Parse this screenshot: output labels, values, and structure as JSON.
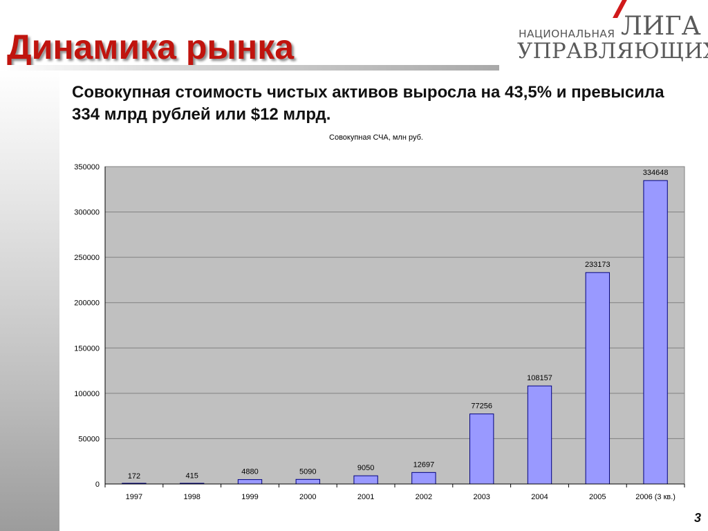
{
  "slide": {
    "title": "Динамика рынка",
    "headline": "Совокупная стоимость чистых активов выросла на 43,5% и превысила 334 млрд рублей или $12 млрд.",
    "page_number": "3"
  },
  "logo": {
    "line1_small": "НАЦИОНАЛЬНАЯ",
    "line1_big": "ЛИГА",
    "line2": "УПРАВЛЯЮЩИХ",
    "accent_color": "#d0191a"
  },
  "colors": {
    "title": "#c0140e",
    "bar_fill": "#9999ff",
    "bar_stroke": "#000080",
    "plot_background": "#c0c0c0"
  },
  "chart_data": {
    "type": "bar",
    "title": "Совокупная СЧА, млн руб.",
    "xlabel": "",
    "ylabel": "",
    "categories": [
      "1997",
      "1998",
      "1999",
      "2000",
      "2001",
      "2002",
      "2003",
      "2004",
      "2005",
      "2006 (3 кв.)"
    ],
    "values": [
      172,
      415,
      4880,
      5090,
      9050,
      12697,
      77256,
      108157,
      233173,
      334648
    ],
    "data_labels": [
      "172",
      "415",
      "4880",
      "5090",
      "9050",
      "12697",
      "77256",
      "108157",
      "233173",
      "334648"
    ],
    "ylim": [
      0,
      350000
    ],
    "yticks": [
      0,
      50000,
      100000,
      150000,
      200000,
      250000,
      300000,
      350000
    ],
    "ytick_labels": [
      "0",
      "50000",
      "100000",
      "150000",
      "200000",
      "250000",
      "300000",
      "350000"
    ],
    "grid": true,
    "legend": "none"
  }
}
